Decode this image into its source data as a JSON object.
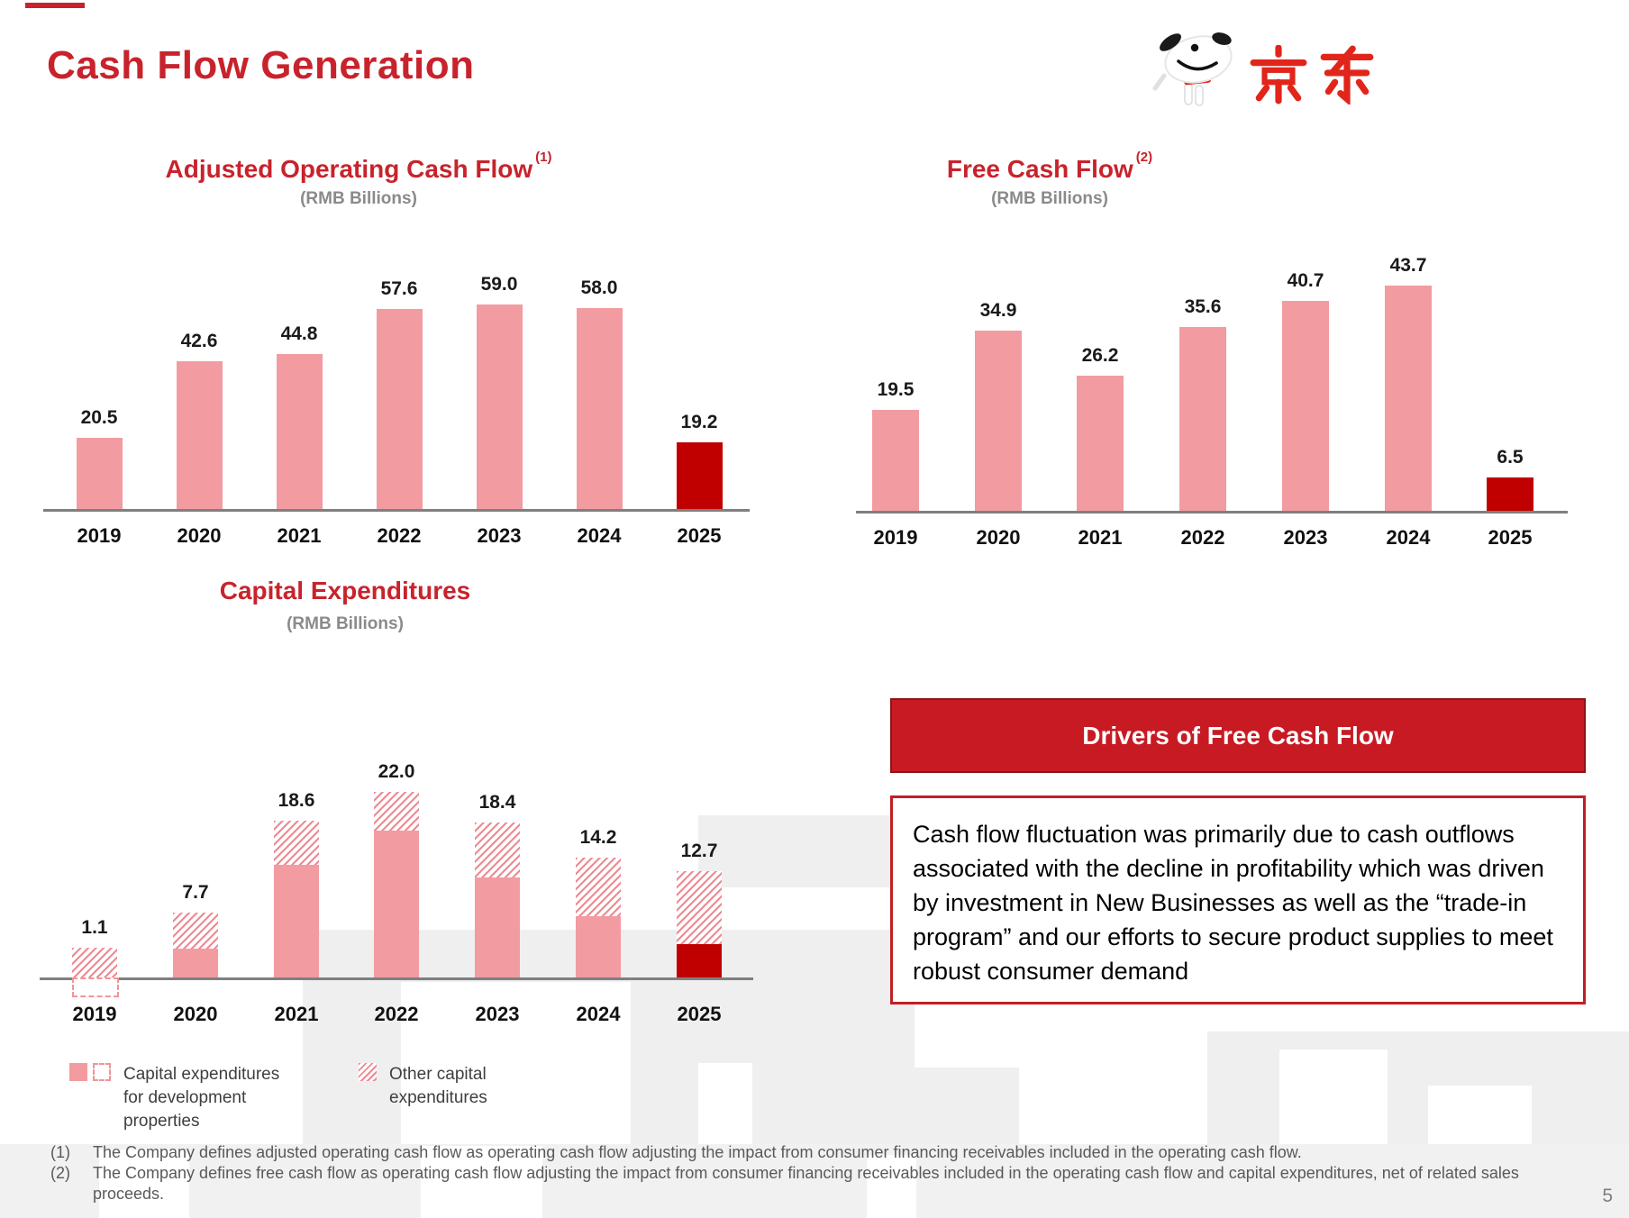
{
  "slide": {
    "title": "Cash Flow Generation",
    "page_number": "5",
    "logo": {
      "brand": "JD.com",
      "logo_text": "京东",
      "mascot": "joy-dog-mascot"
    }
  },
  "chart_data": [
    {
      "id": "aocf",
      "type": "bar",
      "title": "Adjusted Operating Cash Flow",
      "title_ref": "(1)",
      "subtitle": "(RMB Billions)",
      "categories": [
        "2019",
        "2020",
        "2021",
        "2022",
        "2023",
        "2024",
        "2025"
      ],
      "values": [
        20.5,
        42.6,
        44.8,
        57.6,
        59.0,
        58.0,
        19.2
      ],
      "value_labels": [
        "20.5",
        "42.6",
        "44.8",
        "57.6",
        "59.0",
        "58.0",
        "19.2"
      ],
      "highlight_category": "2025",
      "ylim": [
        0,
        65
      ],
      "grid": false,
      "legend_position": "none"
    },
    {
      "id": "fcf",
      "type": "bar",
      "title": "Free Cash Flow",
      "title_ref": "(2)",
      "subtitle": "(RMB Billions)",
      "categories": [
        "2019",
        "2020",
        "2021",
        "2022",
        "2023",
        "2024",
        "2025"
      ],
      "values": [
        19.5,
        34.9,
        26.2,
        35.6,
        40.7,
        43.7,
        6.5
      ],
      "value_labels": [
        "19.5",
        "34.9",
        "26.2",
        "35.6",
        "40.7",
        "43.7",
        "6.5"
      ],
      "highlight_category": "2025",
      "ylim": [
        0,
        48
      ],
      "grid": false,
      "legend_position": "none"
    },
    {
      "id": "capex",
      "type": "stacked-bar",
      "title": "Capital Expenditures",
      "subtitle": "(RMB Billions)",
      "categories": [
        "2019",
        "2020",
        "2021",
        "2022",
        "2023",
        "2024",
        "2025"
      ],
      "series": [
        {
          "name": "Capital expenditures for development properties",
          "style": "solid",
          "values": [
            -2.4,
            3.4,
            13.4,
            17.4,
            11.9,
            7.3,
            4.0
          ]
        },
        {
          "name": "Other capital expenditures",
          "style": "hatched",
          "values": [
            3.5,
            4.3,
            5.2,
            4.6,
            6.5,
            6.9,
            8.7
          ]
        }
      ],
      "totals": [
        1.1,
        7.7,
        18.6,
        22.0,
        18.4,
        14.2,
        12.7
      ],
      "total_labels": [
        "1.1",
        "7.7",
        "18.6",
        "22.0",
        "18.4",
        "14.2",
        "12.7"
      ],
      "highlight_category": "2025",
      "ylim": [
        -3,
        24
      ],
      "grid": false,
      "legend_position": "bottom-left"
    }
  ],
  "drivers": {
    "header": "Drivers of Free Cash Flow",
    "body": "Cash flow fluctuation was primarily due to cash outflows associated with the decline in profitability which was driven by investment in New Businesses as well as the “trade-in program” and our efforts to secure product supplies to meet robust consumer demand"
  },
  "legend": {
    "development": "Capital expenditures for development properties",
    "other": "Other capital expenditures"
  },
  "footnotes": [
    {
      "marker": "(1)",
      "text": "The Company defines adjusted operating cash flow as operating cash flow adjusting the impact from consumer financing receivables included in the operating cash flow."
    },
    {
      "marker": "(2)",
      "text": "The Company defines free cash flow as operating cash flow adjusting the impact from consumer financing receivables included in the operating cash flow and capital expenditures, net of related sales proceeds."
    }
  ],
  "colors": {
    "title_red": "#C8232C",
    "bar_pink": "#F29BA1",
    "bar_dark_red": "#C00000",
    "header_box_red": "#C81A23",
    "logo_red": "#E1251B",
    "subtitle_gray": "#8A8A8A",
    "footnote_gray": "#595959",
    "axis_gray": "#7F7F7F",
    "hatch_pink": "#EE8A93"
  }
}
